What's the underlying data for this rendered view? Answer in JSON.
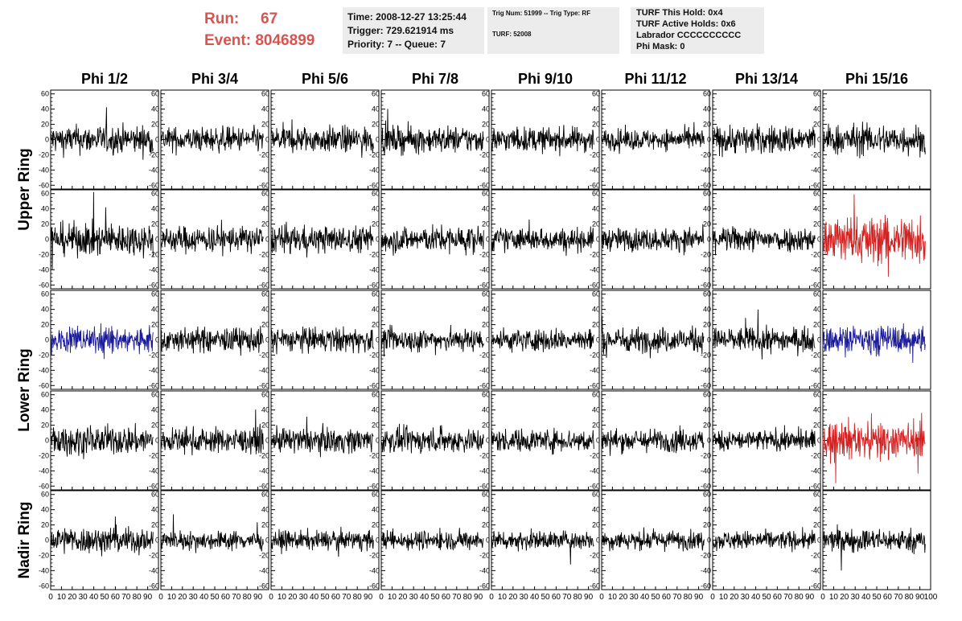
{
  "header": {
    "run_label": "Run:",
    "run_value": "67",
    "event_label": "Event:",
    "event_value": "8046899",
    "time": "Time: 2008-12-27 13:25:44",
    "trigger": "Trigger: 729.621914 ms",
    "priority": "Priority: 7 -- Queue: 7",
    "trig_num": "Trig Num: 51999 -- Trig Type: RF",
    "turf": "TURF: 52008",
    "turf_this_hold": "TURF This Hold: 0x4",
    "turf_active_holds": "TURF Active Holds: 0x6",
    "labrador": "Labrador CCCCCCCCCC",
    "phi_mask": "Phi Mask: 0"
  },
  "chart_data": {
    "type": "line",
    "columns": [
      "Phi 1/2",
      "Phi 3/4",
      "Phi 5/6",
      "Phi 7/8",
      "Phi 9/10",
      "Phi 11/12",
      "Phi 13/14",
      "Phi 15/16"
    ],
    "rows": [
      "Upper Ring",
      "Lower Ring",
      "Nadir Ring"
    ],
    "panel_rows": [
      {
        "ring": "Upper Ring"
      },
      {
        "ring": "Upper Ring"
      },
      {
        "ring": "Lower Ring"
      },
      {
        "ring": "Lower Ring"
      },
      {
        "ring": "Nadir Ring"
      }
    ],
    "xlim": [
      0,
      100
    ],
    "ylim": [
      -65,
      65
    ],
    "x_ticks": [
      0,
      10,
      20,
      30,
      40,
      50,
      60,
      70,
      80,
      90,
      100
    ],
    "y_ticks": [
      -60,
      -40,
      -20,
      0,
      20,
      40,
      60
    ],
    "colors": {
      "default": "#000000",
      "red": "#d42020",
      "blue": "#1a1a9c"
    },
    "highlight": [
      {
        "row": 1,
        "col": 7,
        "color": "red"
      },
      {
        "row": 2,
        "col": 0,
        "color": "blue"
      },
      {
        "row": 2,
        "col": 7,
        "color": "blue"
      },
      {
        "row": 3,
        "col": 7,
        "color": "red"
      }
    ],
    "amplitude": [
      [
        15,
        13,
        14,
        14,
        13,
        11,
        15,
        16
      ],
      [
        17,
        14,
        14,
        14,
        12,
        12,
        13,
        24
      ],
      [
        13,
        13,
        13,
        12,
        12,
        13,
        13,
        14
      ],
      [
        15,
        13,
        13,
        13,
        12,
        12,
        11,
        18
      ],
      [
        14,
        10,
        10,
        10,
        10,
        10,
        10,
        12
      ]
    ],
    "grid": false
  }
}
